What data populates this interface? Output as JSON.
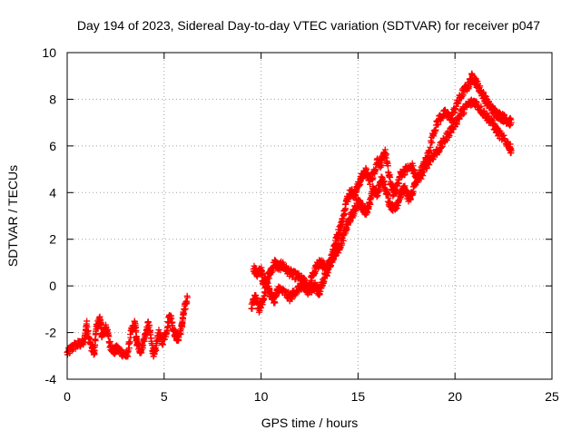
{
  "chart_data": {
    "type": "scatter",
    "title": "Day 194 of 2023, Sidereal Day-to-day VTEC variation (SDTVAR) for receiver p047",
    "xlabel": "GPS time / hours",
    "ylabel": "SDTVAR / TECUs",
    "xlim": [
      0,
      25
    ],
    "ylim": [
      -4,
      10
    ],
    "xticks": [
      0,
      5,
      10,
      15,
      20,
      25
    ],
    "yticks": [
      -4,
      -2,
      0,
      2,
      4,
      6,
      8,
      10
    ],
    "grid": true,
    "marker": "plus",
    "color": "#ff0000",
    "series": [
      {
        "name": "SDTVAR",
        "trace_a": {
          "x": [
            0.0,
            0.3,
            0.6,
            0.9,
            1.0,
            1.2,
            1.4,
            1.5,
            1.7,
            1.8,
            2.0,
            2.2,
            2.4,
            2.6,
            2.9,
            3.1,
            3.3,
            3.5,
            3.6,
            3.8,
            4.0,
            4.2,
            4.4,
            4.5,
            4.7,
            4.9,
            5.1,
            5.3,
            5.5,
            5.7,
            5.9,
            6.0,
            6.2
          ],
          "y": [
            -2.9,
            -2.6,
            -2.5,
            -2.4,
            -1.6,
            -2.5,
            -2.9,
            -1.8,
            -1.4,
            -2.2,
            -1.7,
            -2.5,
            -2.8,
            -2.7,
            -2.9,
            -3.0,
            -2.0,
            -1.6,
            -2.5,
            -2.8,
            -2.2,
            -1.6,
            -2.7,
            -3.0,
            -2.0,
            -2.4,
            -2.0,
            -1.2,
            -1.9,
            -2.3,
            -1.8,
            -1.2,
            -0.5
          ]
        },
        "trace_b": {
          "x": [
            9.6,
            9.8,
            10.0,
            10.1,
            10.3,
            10.5,
            10.7,
            10.9,
            11.1,
            11.3,
            11.6,
            11.9,
            12.2,
            12.4,
            12.6,
            12.8,
            13.0,
            13.2,
            13.4,
            13.6,
            13.8,
            14.0,
            14.2,
            14.4,
            14.6,
            14.8,
            15.0,
            15.2,
            15.4,
            15.6,
            15.8,
            16.0,
            16.2,
            16.4,
            16.6,
            16.8,
            17.0,
            17.2,
            17.5,
            17.8,
            18.0,
            18.3,
            18.6,
            18.9,
            19.2,
            19.5,
            19.8,
            20.1,
            20.4,
            20.7,
            20.9,
            21.1,
            21.3,
            21.5,
            21.7,
            21.9,
            22.1,
            22.3,
            22.5,
            22.7,
            22.9
          ],
          "y": [
            0.8,
            0.5,
            0.7,
            0.2,
            0.3,
            0.6,
            1.0,
            0.8,
            0.9,
            0.7,
            0.5,
            0.4,
            0.2,
            -0.1,
            0.3,
            0.7,
            1.0,
            0.9,
            0.6,
            1.2,
            1.8,
            2.3,
            2.8,
            3.6,
            4.1,
            3.9,
            4.3,
            4.7,
            4.9,
            4.5,
            4.8,
            5.4,
            5.2,
            5.8,
            4.7,
            4.0,
            4.2,
            4.8,
            5.0,
            5.1,
            4.6,
            5.0,
            5.6,
            6.6,
            7.2,
            7.4,
            7.2,
            7.8,
            8.3,
            8.6,
            9.0,
            8.7,
            8.4,
            8.1,
            7.8,
            7.6,
            7.4,
            7.3,
            7.2,
            7.1,
            7.0
          ]
        },
        "trace_c": {
          "x": [
            9.5,
            9.7,
            9.9,
            10.1,
            10.3,
            10.5,
            10.7,
            10.9,
            11.2,
            11.5,
            11.8,
            12.1,
            12.4,
            12.6,
            12.8,
            13.0,
            13.2,
            13.4,
            13.6,
            13.8,
            14.0,
            14.2,
            14.4,
            14.6,
            14.8,
            15.0,
            15.2,
            15.4,
            15.6,
            15.8,
            16.0,
            16.2,
            16.4,
            16.6,
            16.8,
            17.0,
            17.2,
            17.4,
            17.6,
            17.8,
            18.0,
            18.3,
            18.6,
            18.9,
            19.2,
            19.5,
            19.8,
            20.1,
            20.4,
            20.7,
            21.0,
            21.3,
            21.6,
            21.9,
            22.2,
            22.5,
            22.8,
            22.9
          ],
          "y": [
            -0.9,
            -0.5,
            -1.0,
            -0.6,
            0.1,
            -0.4,
            -0.6,
            -0.1,
            -0.3,
            -0.5,
            -0.2,
            0.0,
            -0.3,
            -0.1,
            0.0,
            -0.3,
            0.2,
            0.8,
            1.0,
            1.4,
            1.6,
            2.0,
            2.5,
            2.9,
            3.2,
            3.6,
            3.4,
            3.2,
            3.5,
            4.2,
            3.9,
            4.6,
            4.2,
            3.6,
            3.3,
            3.5,
            3.9,
            4.2,
            3.7,
            4.0,
            4.5,
            4.8,
            5.3,
            5.6,
            5.9,
            6.3,
            6.7,
            7.1,
            7.5,
            7.8,
            7.9,
            7.6,
            7.3,
            7.0,
            6.6,
            6.3,
            6.0,
            5.8
          ]
        }
      }
    ]
  }
}
